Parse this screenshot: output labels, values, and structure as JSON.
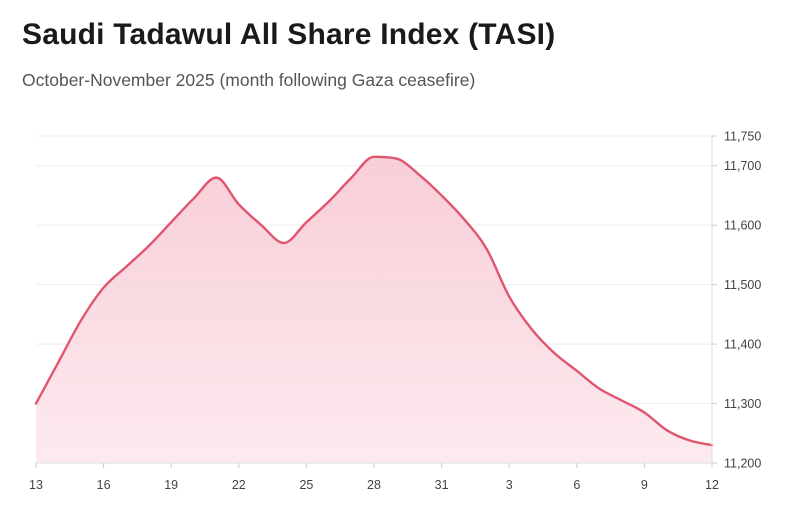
{
  "title": "Saudi Tadawul All Share Index (TASI)",
  "subtitle": "October-November 2025 (month following Gaza ceasefire)",
  "colors": {
    "line": "#e0566e",
    "fill_top": "#f7c6d1",
    "fill_bottom": "#fce8ed",
    "grid": "#eeeeee"
  },
  "chart_data": {
    "type": "area",
    "title": "Saudi Tadawul All Share Index (TASI)",
    "subtitle": "October-November 2025 (month following Gaza ceasefire)",
    "xlabel": "",
    "ylabel": "",
    "ylim": [
      11200,
      11750
    ],
    "yticks": [
      11200,
      11300,
      11400,
      11500,
      11600,
      11700,
      11750
    ],
    "ytick_labels": [
      "11,200",
      "11,300",
      "11,400",
      "11,500",
      "11,600",
      "11,700",
      "11,750"
    ],
    "xtick_labels": [
      "13",
      "16",
      "19",
      "22",
      "25",
      "28",
      "31",
      "3",
      "6",
      "9",
      "12"
    ],
    "y_axis_position": "right",
    "grid": true,
    "series": [
      {
        "name": "TASI",
        "x": [
          0,
          1,
          2,
          3,
          4,
          5,
          6,
          7,
          8,
          9,
          10,
          11,
          12,
          13,
          14,
          15,
          16,
          17,
          18,
          19,
          20,
          21,
          22,
          23,
          24,
          25,
          26,
          27,
          28,
          29,
          30
        ],
        "values": [
          11300,
          11370,
          11440,
          11495,
          11530,
          11565,
          11605,
          11645,
          11680,
          11635,
          11600,
          11570,
          11605,
          11640,
          11680,
          11715,
          11712,
          11685,
          11650,
          11610,
          11560,
          11480,
          11425,
          11385,
          11355,
          11325,
          11305,
          11285,
          11255,
          11238,
          11230
        ]
      }
    ]
  }
}
